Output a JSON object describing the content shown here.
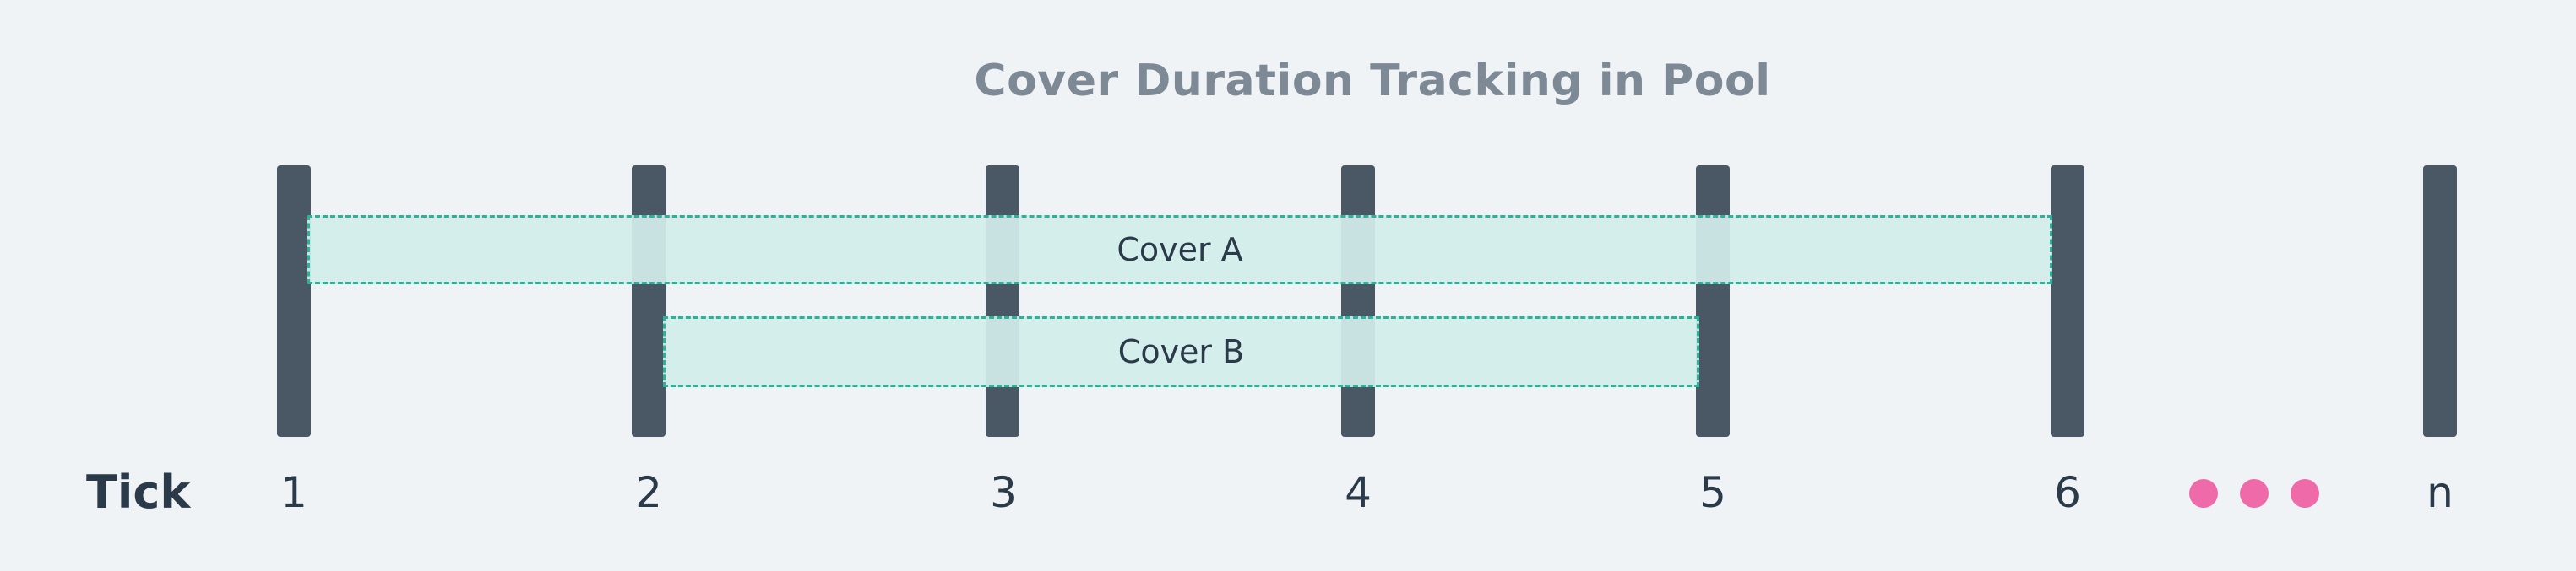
{
  "title": "Cover Duration Tracking in Pool",
  "axis_label": "Tick",
  "ticks": [
    "1",
    "2",
    "3",
    "4",
    "5",
    "6",
    "n"
  ],
  "covers": [
    {
      "label": "Cover A",
      "start_tick": "1",
      "end_tick": "6"
    },
    {
      "label": "Cover B",
      "start_tick": "2",
      "end_tick": "5"
    }
  ],
  "colors": {
    "tick_bar": "#4a5866",
    "cover_fill": "#d1eeea",
    "cover_border": "#2bb39a",
    "dots": "#ee6aa9",
    "title": "#7d8a96",
    "text": "#2b3a49"
  },
  "icons": {
    "continuation": "ellipsis-dots-icon"
  }
}
